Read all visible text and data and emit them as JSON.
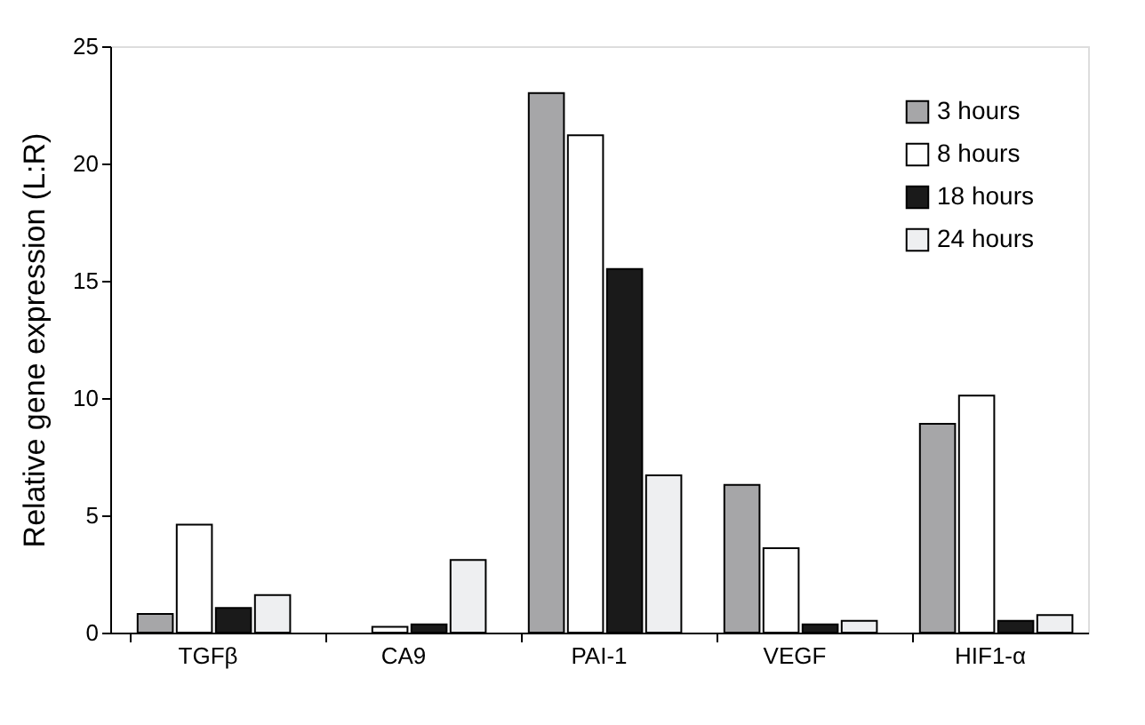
{
  "chart_data": {
    "type": "bar",
    "ylabel": "Relative gene expression (L:R)",
    "categories": [
      "TGFβ",
      "CA9",
      "PAI-1",
      "VEGF",
      "HIF1-α"
    ],
    "series": [
      {
        "name": "3 hours",
        "color": "#a6a6a8",
        "values": [
          0.8,
          null,
          23.0,
          6.3,
          8.9
        ]
      },
      {
        "name": "8 hours",
        "color": "#ffffff",
        "values": [
          4.6,
          0.25,
          21.2,
          3.6,
          10.1
        ]
      },
      {
        "name": "18 hours",
        "color": "#1a1a1a",
        "values": [
          1.05,
          0.35,
          15.5,
          0.35,
          0.5
        ]
      },
      {
        "name": "24 hours",
        "color": "#eeeff1",
        "values": [
          1.6,
          3.1,
          6.7,
          0.5,
          0.75
        ]
      }
    ],
    "ylim": [
      0,
      25
    ],
    "yticks": [
      0,
      5,
      10,
      15,
      20,
      25
    ],
    "grid": false,
    "legend": "top right"
  }
}
